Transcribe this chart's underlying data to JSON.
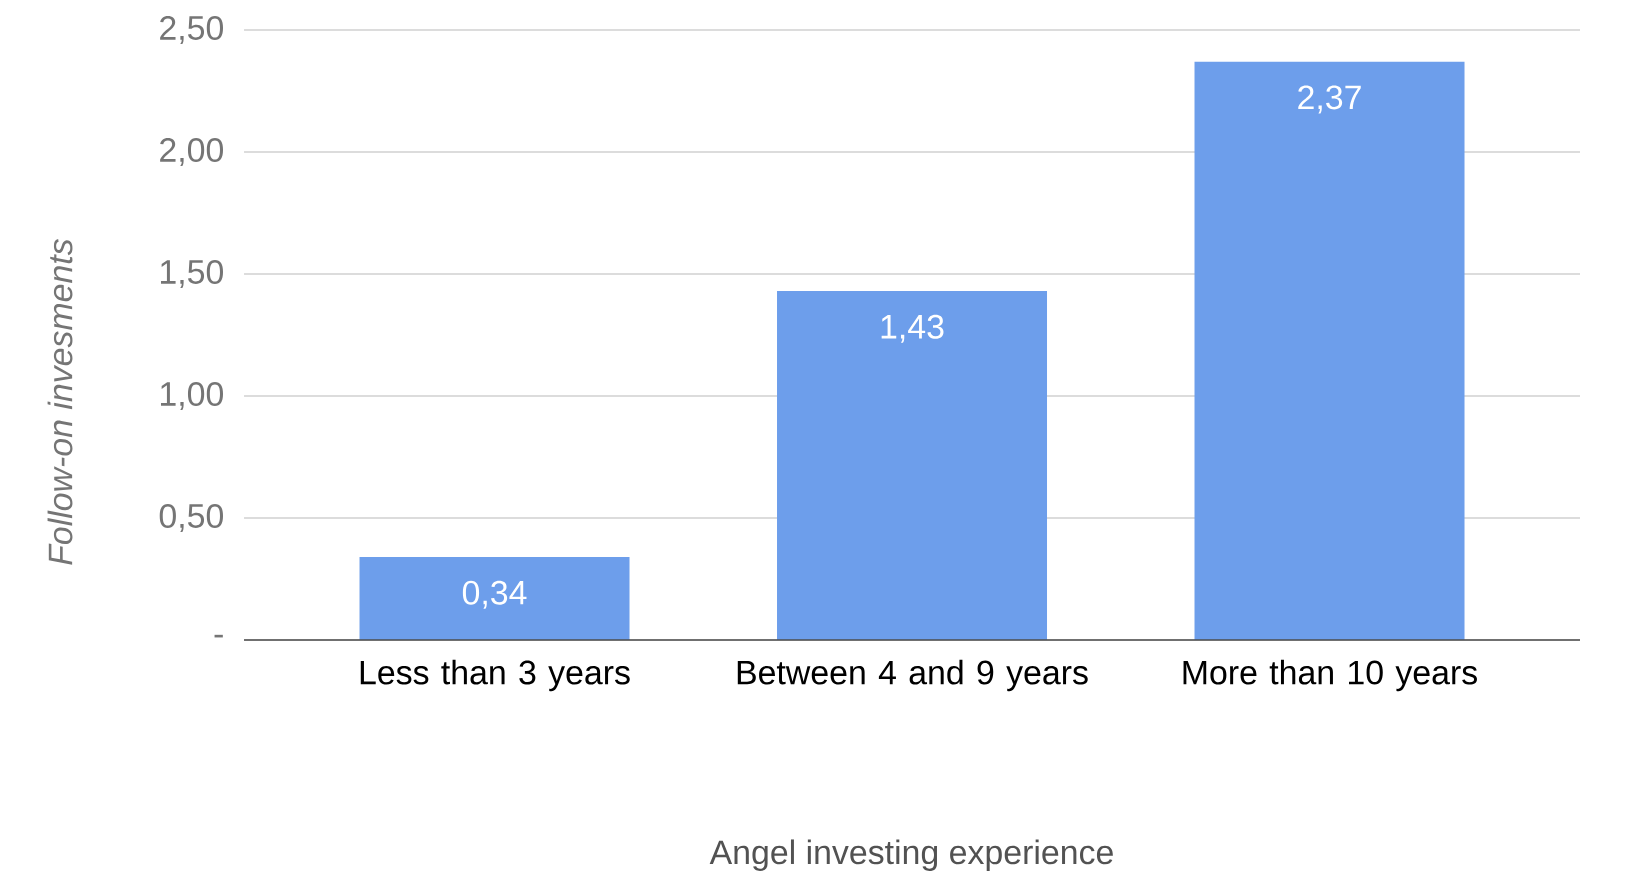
{
  "chart_data": {
    "type": "bar",
    "categories": [
      "Less than 3 years",
      "Between 4 and 9 years",
      "More than 10 years"
    ],
    "values": [
      0.34,
      1.43,
      2.37
    ],
    "value_labels": [
      "0,34",
      "1,43",
      "2,37"
    ],
    "color": "#6d9eeb",
    "xlabel": "Angel investing experience",
    "ylabel": "Follow-on invesments",
    "ylim": [
      0,
      2.5
    ],
    "yticks": [
      {
        "value": 0,
        "label": "-"
      },
      {
        "value": 0.5,
        "label": "0,50"
      },
      {
        "value": 1,
        "label": "1,00"
      },
      {
        "value": 1.5,
        "label": "1,50"
      },
      {
        "value": 2,
        "label": "2,00"
      },
      {
        "value": 2.5,
        "label": "2,50"
      }
    ],
    "grid": "y"
  }
}
